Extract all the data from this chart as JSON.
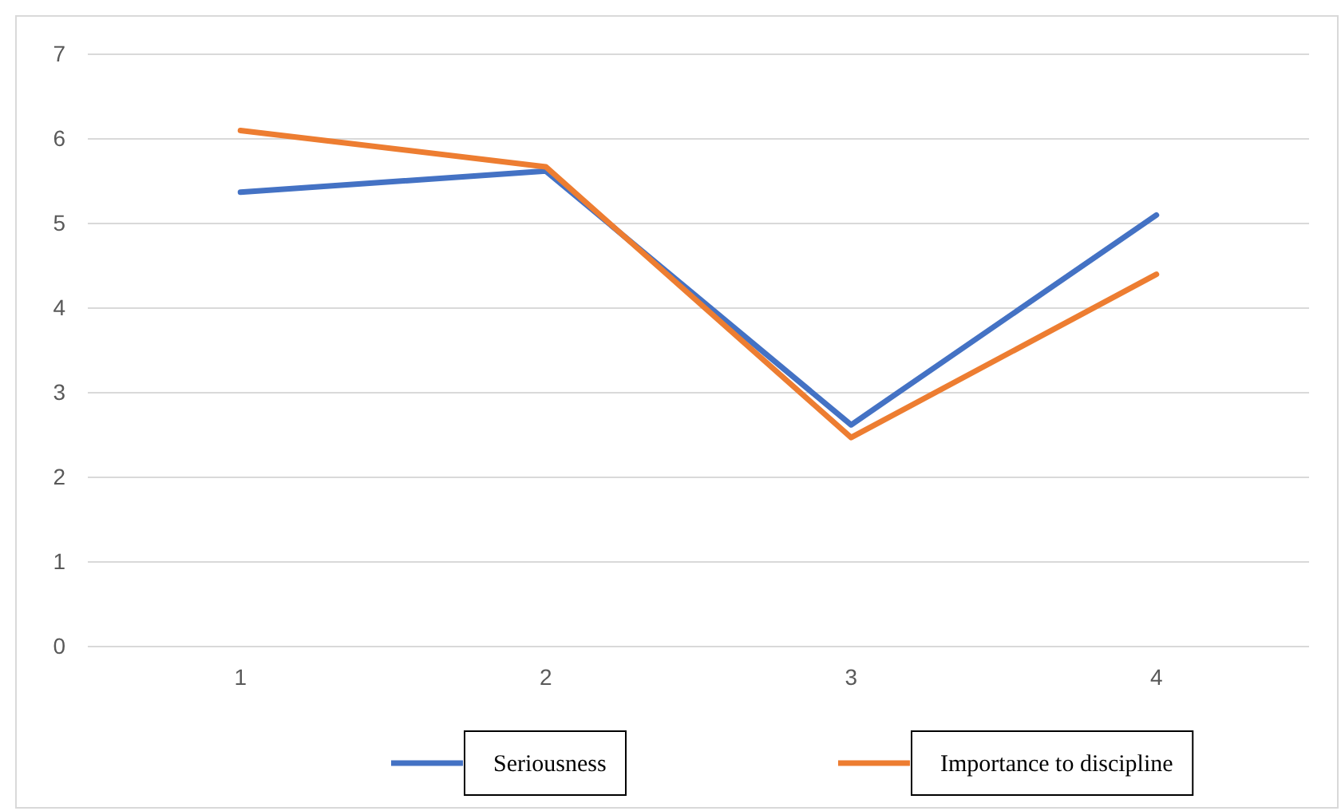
{
  "chart_data": {
    "type": "line",
    "categories": [
      "1",
      "2",
      "3",
      "4"
    ],
    "series": [
      {
        "name": "Seriousness",
        "color": "#4472c4",
        "values": [
          5.37,
          5.62,
          2.62,
          5.1
        ]
      },
      {
        "name": "Importance to discipline",
        "color": "#ed7d31",
        "values": [
          6.1,
          5.67,
          2.47,
          4.4
        ]
      }
    ],
    "ylim": [
      0,
      7
    ],
    "yticks": [
      0,
      1,
      2,
      3,
      4,
      5,
      6,
      7
    ],
    "grid": "y",
    "legend": "bottom",
    "marker": "none",
    "line_style": "solid"
  }
}
